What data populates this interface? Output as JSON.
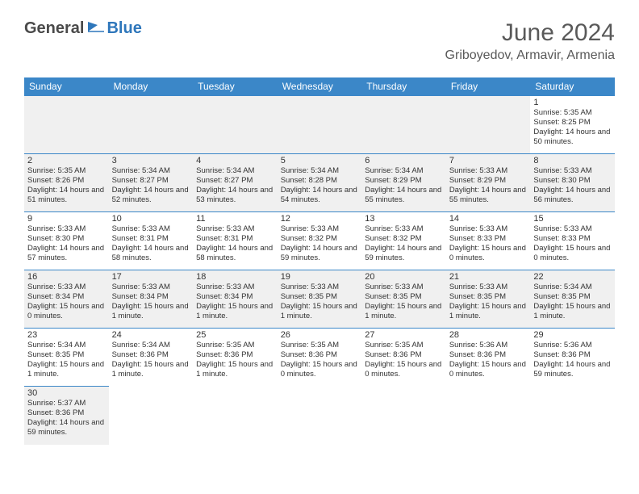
{
  "logo": {
    "dark": "General",
    "blue": "Blue"
  },
  "title": "June 2024",
  "location": "Griboyedov, Armavir, Armenia",
  "colors": {
    "header_bg": "#3b87c8",
    "header_text": "#ffffff",
    "border": "#3b87c8",
    "shaded_bg": "#f0f0f0",
    "text": "#333333"
  },
  "day_names": [
    "Sunday",
    "Monday",
    "Tuesday",
    "Wednesday",
    "Thursday",
    "Friday",
    "Saturday"
  ],
  "weeks": [
    [
      {
        "empty": true,
        "shaded": true
      },
      {
        "empty": true,
        "shaded": true
      },
      {
        "empty": true,
        "shaded": true
      },
      {
        "empty": true,
        "shaded": true
      },
      {
        "empty": true,
        "shaded": true
      },
      {
        "empty": true,
        "shaded": true
      },
      {
        "day": "1",
        "sunrise": "Sunrise: 5:35 AM",
        "sunset": "Sunset: 8:25 PM",
        "daylight": "Daylight: 14 hours and 50 minutes."
      }
    ],
    [
      {
        "day": "2",
        "sunrise": "Sunrise: 5:35 AM",
        "sunset": "Sunset: 8:26 PM",
        "daylight": "Daylight: 14 hours and 51 minutes.",
        "shaded": true
      },
      {
        "day": "3",
        "sunrise": "Sunrise: 5:34 AM",
        "sunset": "Sunset: 8:27 PM",
        "daylight": "Daylight: 14 hours and 52 minutes.",
        "shaded": true
      },
      {
        "day": "4",
        "sunrise": "Sunrise: 5:34 AM",
        "sunset": "Sunset: 8:27 PM",
        "daylight": "Daylight: 14 hours and 53 minutes.",
        "shaded": true
      },
      {
        "day": "5",
        "sunrise": "Sunrise: 5:34 AM",
        "sunset": "Sunset: 8:28 PM",
        "daylight": "Daylight: 14 hours and 54 minutes.",
        "shaded": true
      },
      {
        "day": "6",
        "sunrise": "Sunrise: 5:34 AM",
        "sunset": "Sunset: 8:29 PM",
        "daylight": "Daylight: 14 hours and 55 minutes.",
        "shaded": true
      },
      {
        "day": "7",
        "sunrise": "Sunrise: 5:33 AM",
        "sunset": "Sunset: 8:29 PM",
        "daylight": "Daylight: 14 hours and 55 minutes.",
        "shaded": true
      },
      {
        "day": "8",
        "sunrise": "Sunrise: 5:33 AM",
        "sunset": "Sunset: 8:30 PM",
        "daylight": "Daylight: 14 hours and 56 minutes.",
        "shaded": true
      }
    ],
    [
      {
        "day": "9",
        "sunrise": "Sunrise: 5:33 AM",
        "sunset": "Sunset: 8:30 PM",
        "daylight": "Daylight: 14 hours and 57 minutes."
      },
      {
        "day": "10",
        "sunrise": "Sunrise: 5:33 AM",
        "sunset": "Sunset: 8:31 PM",
        "daylight": "Daylight: 14 hours and 58 minutes."
      },
      {
        "day": "11",
        "sunrise": "Sunrise: 5:33 AM",
        "sunset": "Sunset: 8:31 PM",
        "daylight": "Daylight: 14 hours and 58 minutes."
      },
      {
        "day": "12",
        "sunrise": "Sunrise: 5:33 AM",
        "sunset": "Sunset: 8:32 PM",
        "daylight": "Daylight: 14 hours and 59 minutes."
      },
      {
        "day": "13",
        "sunrise": "Sunrise: 5:33 AM",
        "sunset": "Sunset: 8:32 PM",
        "daylight": "Daylight: 14 hours and 59 minutes."
      },
      {
        "day": "14",
        "sunrise": "Sunrise: 5:33 AM",
        "sunset": "Sunset: 8:33 PM",
        "daylight": "Daylight: 15 hours and 0 minutes."
      },
      {
        "day": "15",
        "sunrise": "Sunrise: 5:33 AM",
        "sunset": "Sunset: 8:33 PM",
        "daylight": "Daylight: 15 hours and 0 minutes."
      }
    ],
    [
      {
        "day": "16",
        "sunrise": "Sunrise: 5:33 AM",
        "sunset": "Sunset: 8:34 PM",
        "daylight": "Daylight: 15 hours and 0 minutes.",
        "shaded": true
      },
      {
        "day": "17",
        "sunrise": "Sunrise: 5:33 AM",
        "sunset": "Sunset: 8:34 PM",
        "daylight": "Daylight: 15 hours and 1 minute.",
        "shaded": true
      },
      {
        "day": "18",
        "sunrise": "Sunrise: 5:33 AM",
        "sunset": "Sunset: 8:34 PM",
        "daylight": "Daylight: 15 hours and 1 minute.",
        "shaded": true
      },
      {
        "day": "19",
        "sunrise": "Sunrise: 5:33 AM",
        "sunset": "Sunset: 8:35 PM",
        "daylight": "Daylight: 15 hours and 1 minute.",
        "shaded": true
      },
      {
        "day": "20",
        "sunrise": "Sunrise: 5:33 AM",
        "sunset": "Sunset: 8:35 PM",
        "daylight": "Daylight: 15 hours and 1 minute.",
        "shaded": true
      },
      {
        "day": "21",
        "sunrise": "Sunrise: 5:33 AM",
        "sunset": "Sunset: 8:35 PM",
        "daylight": "Daylight: 15 hours and 1 minute.",
        "shaded": true
      },
      {
        "day": "22",
        "sunrise": "Sunrise: 5:34 AM",
        "sunset": "Sunset: 8:35 PM",
        "daylight": "Daylight: 15 hours and 1 minute.",
        "shaded": true
      }
    ],
    [
      {
        "day": "23",
        "sunrise": "Sunrise: 5:34 AM",
        "sunset": "Sunset: 8:35 PM",
        "daylight": "Daylight: 15 hours and 1 minute."
      },
      {
        "day": "24",
        "sunrise": "Sunrise: 5:34 AM",
        "sunset": "Sunset: 8:36 PM",
        "daylight": "Daylight: 15 hours and 1 minute."
      },
      {
        "day": "25",
        "sunrise": "Sunrise: 5:35 AM",
        "sunset": "Sunset: 8:36 PM",
        "daylight": "Daylight: 15 hours and 1 minute."
      },
      {
        "day": "26",
        "sunrise": "Sunrise: 5:35 AM",
        "sunset": "Sunset: 8:36 PM",
        "daylight": "Daylight: 15 hours and 0 minutes."
      },
      {
        "day": "27",
        "sunrise": "Sunrise: 5:35 AM",
        "sunset": "Sunset: 8:36 PM",
        "daylight": "Daylight: 15 hours and 0 minutes."
      },
      {
        "day": "28",
        "sunrise": "Sunrise: 5:36 AM",
        "sunset": "Sunset: 8:36 PM",
        "daylight": "Daylight: 15 hours and 0 minutes."
      },
      {
        "day": "29",
        "sunrise": "Sunrise: 5:36 AM",
        "sunset": "Sunset: 8:36 PM",
        "daylight": "Daylight: 14 hours and 59 minutes."
      }
    ],
    [
      {
        "day": "30",
        "sunrise": "Sunrise: 5:37 AM",
        "sunset": "Sunset: 8:36 PM",
        "daylight": "Daylight: 14 hours and 59 minutes.",
        "shaded": true
      },
      {
        "empty": true
      },
      {
        "empty": true
      },
      {
        "empty": true
      },
      {
        "empty": true
      },
      {
        "empty": true
      },
      {
        "empty": true
      }
    ]
  ]
}
